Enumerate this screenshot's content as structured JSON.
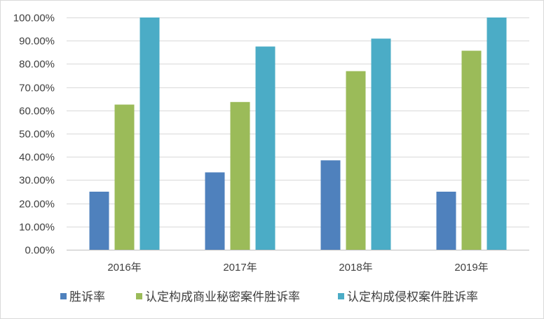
{
  "chart_data": {
    "type": "bar",
    "categories": [
      "2016年",
      "2017年",
      "2018年",
      "2019年"
    ],
    "series": [
      {
        "name": "胜诉率",
        "values": [
          25.0,
          33.3,
          38.5,
          25.0
        ],
        "color": "#4F81BD"
      },
      {
        "name": "认定构成商业秘密案件胜诉率",
        "values": [
          62.5,
          63.6,
          76.9,
          85.7
        ],
        "color": "#9BBB59"
      },
      {
        "name": "认定构成侵权案件胜诉率",
        "values": [
          100.0,
          87.5,
          90.9,
          100.0
        ],
        "color": "#4BACC6"
      }
    ],
    "y_ticks": [
      "0.00%",
      "10.00%",
      "20.00%",
      "30.00%",
      "40.00%",
      "50.00%",
      "60.00%",
      "70.00%",
      "80.00%",
      "90.00%",
      "100.00%"
    ],
    "ylim": [
      0,
      100
    ],
    "ytick_step": 10,
    "y_unit": "%",
    "grid": true,
    "legend_position": "bottom"
  }
}
